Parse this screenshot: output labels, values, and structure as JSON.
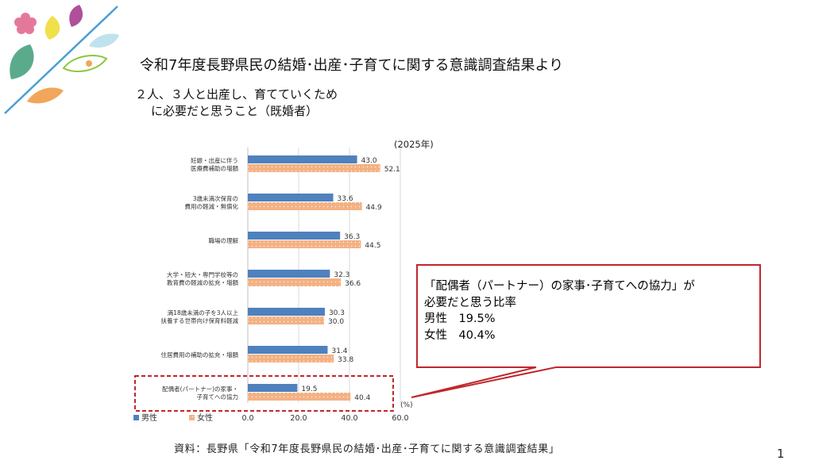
{
  "slide": {
    "title": "令和7年度長野県民の結婚･出産･子育てに関する意識調査結果より",
    "subtitle_line1": "２人、３人と出産し、育てていくため",
    "subtitle_line2": "に必要だと思うこと（既婚者）",
    "source": "資料：長野県「令和7年度長野県民の結婚･出産･子育てに関する意識調査結果」",
    "page_number": "1"
  },
  "callout": {
    "line1": "「配偶者（パートナー）の家事･子育てへの協力」が",
    "line2": "必要だと思う比率",
    "line3": "男性　19.5%",
    "line4": "女性　40.4%"
  },
  "chart_data": {
    "type": "bar",
    "orientation": "horizontal",
    "year_label": "(2025年)",
    "unit_label": "(%)",
    "categories": [
      [
        "妊娠・出産に伴う",
        "医療費補助の増額"
      ],
      [
        "3歳未満次保育の",
        "費用の軽減・無償化"
      ],
      [
        "職場の理解"
      ],
      [
        "大学・短大・専門学校等の",
        "教育費の軽減の拡充・増額"
      ],
      [
        "満18歳未満の子を3人以上",
        "扶養する世帯向け保育料軽減"
      ],
      [
        "住居費用の補助の拡充・増額"
      ],
      [
        "配偶者(パートナー)の家事・",
        "子育てへの協力"
      ]
    ],
    "series": [
      {
        "name": "男性",
        "color": "#4f81bd",
        "values": [
          43.0,
          33.6,
          36.3,
          32.3,
          30.3,
          31.4,
          19.5
        ]
      },
      {
        "name": "女性",
        "color": "#f4b183",
        "values": [
          52.1,
          44.9,
          44.5,
          36.6,
          30.0,
          33.8,
          40.4
        ]
      }
    ],
    "xlim": [
      0,
      60
    ],
    "xticks": [
      "0.0",
      "20.0",
      "40.0",
      "60.0"
    ],
    "highlight_index": 6,
    "legend_position": "bottom-left"
  },
  "colors": {
    "highlight_red": "#c0272d",
    "male": "#4f81bd",
    "female": "#f4b183"
  }
}
